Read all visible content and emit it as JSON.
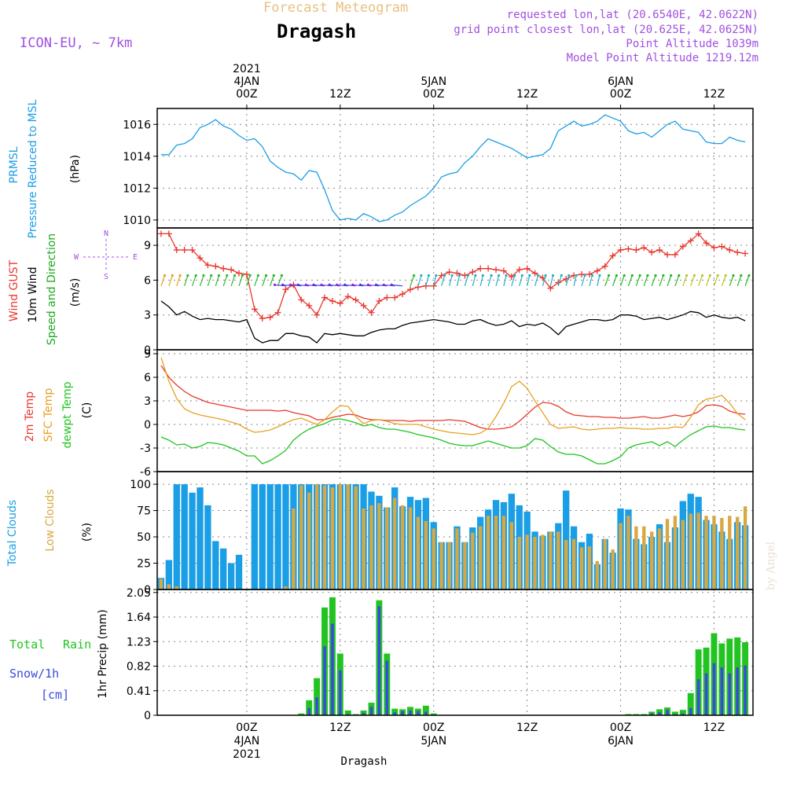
{
  "header": {
    "title_faint": "Forecast Meteogram",
    "location": "Dragash",
    "model": "ICON-EU, ~ 7km",
    "requested": "requested lon,lat (20.6540E, 42.0622N)",
    "gridpoint": "grid point closest lon,lat (20.625E, 42.0625N)",
    "point_alt": "Point Altitude 1039m",
    "model_alt": "Model Point Altitude 1219.12m",
    "footer_location": "Dragash",
    "watermark": "by Angel"
  },
  "time_axis": {
    "top_labels": [
      {
        "line1": "2021",
        "line2": "4JAN",
        "line3": "00Z",
        "hour": 0
      },
      {
        "line1": "",
        "line2": "",
        "line3": "12Z",
        "hour": 12
      },
      {
        "line1": "",
        "line2": "5JAN",
        "line3": "00Z",
        "hour": 24
      },
      {
        "line1": "",
        "line2": "",
        "line3": "12Z",
        "hour": 36
      },
      {
        "line1": "",
        "line2": "6JAN",
        "line3": "00Z",
        "hour": 48
      },
      {
        "line1": "",
        "line2": "",
        "line3": "12Z",
        "hour": 60
      }
    ],
    "bottom_labels": [
      {
        "line1": "00Z",
        "line2": "4JAN",
        "line3": "2021",
        "hour": 0
      },
      {
        "line1": "12Z",
        "line2": "",
        "line3": "",
        "hour": 12
      },
      {
        "line1": "00Z",
        "line2": "5JAN",
        "line3": "",
        "hour": 24
      },
      {
        "line1": "12Z",
        "line2": "",
        "line3": "",
        "hour": 36
      },
      {
        "line1": "00Z",
        "line2": "6JAN",
        "line3": "",
        "hour": 48
      },
      {
        "line1": "12Z",
        "line2": "",
        "line3": "",
        "hour": 60
      }
    ],
    "xlim": [
      -11.5,
      65
    ]
  },
  "colors": {
    "pressure": "#1a9ee6",
    "gust": "#e8372e",
    "wind": "#000000",
    "windlabel": "#1aaa1a",
    "temp2m": "#e8372e",
    "sfc": "#e8a020",
    "dewpt": "#1ec41e",
    "total_cloud": "#1a9ee6",
    "low_cloud": "#d8a840",
    "rain": "#22c422",
    "snow": "#3a4ae0",
    "purple": "#a050e0",
    "faint": "#e8c080"
  },
  "panels": {
    "pressure": {
      "l1": "PRMSL",
      "l2": "Pressure Reduced to MSL",
      "unit": "(hPa)",
      "ticks": [
        "1010",
        "1012",
        "1014",
        "1016"
      ]
    },
    "wind": {
      "l1": "Wind GUST",
      "l2": "10m Wind",
      "l3": "Speed and Direction",
      "unit": "(m/s)",
      "ticks": [
        "0",
        "3",
        "6",
        "9"
      ],
      "compass": {
        "n": "N",
        "s": "S",
        "e": "E",
        "w": "W"
      }
    },
    "temp": {
      "l1": "2m Temp",
      "l2": "SFC Temp",
      "l3": "dewpt Temp",
      "unit": "(C)",
      "ticks": [
        "-6",
        "-3",
        "0",
        "3",
        "6",
        "9"
      ]
    },
    "clouds": {
      "l1": "Total Clouds",
      "l2": "Low Clouds",
      "unit": "(%)",
      "ticks": [
        "0",
        "25",
        "50",
        "75",
        "100"
      ]
    },
    "precip": {
      "l1": "Total",
      "l1b": "Rain",
      "l2": "Snow/1h",
      "l3": "[cm]",
      "unit": "1hr Precip (mm)",
      "ticks": [
        "0",
        "0.41",
        "0.82",
        "1.23",
        "1.64",
        "2.05"
      ]
    }
  },
  "chart_data": [
    {
      "type": "line",
      "name": "pressure",
      "ylim": [
        1009.5,
        1017
      ],
      "ylabel": "(hPa)",
      "x": [
        -11,
        -10,
        -9,
        -8,
        -7,
        -6,
        -5,
        -4,
        -3,
        -2,
        -1,
        0,
        1,
        2,
        3,
        4,
        5,
        6,
        7,
        8,
        9,
        10,
        11,
        12,
        13,
        14,
        15,
        16,
        17,
        18,
        19,
        20,
        21,
        22,
        23,
        24,
        25,
        26,
        27,
        28,
        29,
        30,
        31,
        32,
        33,
        34,
        35,
        36,
        37,
        38,
        39,
        40,
        41,
        42,
        43,
        44,
        45,
        46,
        47,
        48,
        49,
        50,
        51,
        52,
        53,
        54,
        55,
        56,
        57,
        58,
        59,
        60,
        61,
        62,
        63,
        64
      ],
      "values": [
        1014.1,
        1014.1,
        1014.7,
        1014.8,
        1015.1,
        1015.8,
        1016.0,
        1016.3,
        1015.9,
        1015.7,
        1015.3,
        1015.0,
        1015.1,
        1014.6,
        1013.7,
        1013.3,
        1013.0,
        1012.9,
        1012.5,
        1013.1,
        1013.0,
        1011.9,
        1010.6,
        1010.0,
        1010.1,
        1010.0,
        1010.4,
        1010.2,
        1009.9,
        1010.0,
        1010.3,
        1010.5,
        1010.9,
        1011.2,
        1011.5,
        1012.0,
        1012.7,
        1012.9,
        1013.0,
        1013.6,
        1014.0,
        1014.6,
        1015.1,
        1014.9,
        1014.7,
        1014.5,
        1014.2,
        1013.9,
        1014.0,
        1014.1,
        1014.5,
        1015.6,
        1015.9,
        1016.2,
        1015.9,
        1016.0,
        1016.2,
        1016.6,
        1016.4,
        1016.2,
        1015.6,
        1015.4,
        1015.5,
        1015.2,
        1015.6,
        1016.0,
        1016.2,
        1015.7,
        1015.6,
        1015.5,
        1014.9,
        1014.8,
        1014.8,
        1015.2,
        1015.0,
        1014.9
      ]
    },
    {
      "type": "line",
      "name": "wind",
      "ylim": [
        0,
        10.5
      ],
      "ylabel": "(m/s)",
      "x": [
        -11,
        -10,
        -9,
        -8,
        -7,
        -6,
        -5,
        -4,
        -3,
        -2,
        -1,
        0,
        1,
        2,
        3,
        4,
        5,
        6,
        7,
        8,
        9,
        10,
        11,
        12,
        13,
        14,
        15,
        16,
        17,
        18,
        19,
        20,
        21,
        22,
        23,
        24,
        25,
        26,
        27,
        28,
        29,
        30,
        31,
        32,
        33,
        34,
        35,
        36,
        37,
        38,
        39,
        40,
        41,
        42,
        43,
        44,
        45,
        46,
        47,
        48,
        49,
        50,
        51,
        52,
        53,
        54,
        55,
        56,
        57,
        58,
        59,
        60,
        61,
        62,
        63,
        64
      ],
      "gust": [
        10.0,
        10.0,
        8.6,
        8.6,
        8.6,
        7.9,
        7.3,
        7.2,
        7.0,
        6.9,
        6.6,
        6.5,
        3.5,
        2.7,
        2.8,
        3.2,
        5.2,
        5.6,
        4.3,
        3.8,
        3.0,
        4.5,
        4.2,
        4.0,
        4.6,
        4.3,
        3.8,
        3.2,
        4.2,
        4.5,
        4.5,
        4.8,
        5.2,
        5.4,
        5.5,
        5.5,
        6.4,
        6.7,
        6.6,
        6.4,
        6.7,
        7.0,
        7.0,
        6.9,
        6.8,
        6.3,
        6.9,
        7.0,
        6.6,
        6.2,
        5.3,
        5.8,
        6.1,
        6.4,
        6.5,
        6.5,
        6.8,
        7.2,
        8.1,
        8.6,
        8.7,
        8.6,
        8.8,
        8.4,
        8.6,
        8.2,
        8.2,
        8.9,
        9.4,
        10.0,
        9.2,
        8.8,
        8.9,
        8.6,
        8.4,
        8.3
      ],
      "speed": [
        4.2,
        3.7,
        3.0,
        3.3,
        2.9,
        2.6,
        2.7,
        2.6,
        2.6,
        2.5,
        2.4,
        2.6,
        1.0,
        0.6,
        0.8,
        0.8,
        1.4,
        1.4,
        1.2,
        1.1,
        0.6,
        1.4,
        1.3,
        1.4,
        1.3,
        1.2,
        1.2,
        1.5,
        1.7,
        1.8,
        1.8,
        2.1,
        2.3,
        2.4,
        2.5,
        2.6,
        2.5,
        2.4,
        2.2,
        2.2,
        2.5,
        2.6,
        2.3,
        2.1,
        2.2,
        2.5,
        2.0,
        2.2,
        2.1,
        2.3,
        1.9,
        1.3,
        2.0,
        2.2,
        2.4,
        2.6,
        2.6,
        2.5,
        2.6,
        3.0,
        3.0,
        2.9,
        2.6,
        2.7,
        2.8,
        2.6,
        2.8,
        3.0,
        3.3,
        3.2,
        2.8,
        3.0,
        2.8,
        2.7,
        2.8,
        2.5
      ]
    },
    {
      "type": "line",
      "name": "temperature",
      "ylim": [
        -6,
        9.5
      ],
      "ylabel": "(C)",
      "x": [
        -11,
        -10,
        -9,
        -8,
        -7,
        -6,
        -5,
        -4,
        -3,
        -2,
        -1,
        0,
        1,
        2,
        3,
        4,
        5,
        6,
        7,
        8,
        9,
        10,
        11,
        12,
        13,
        14,
        15,
        16,
        17,
        18,
        19,
        20,
        21,
        22,
        23,
        24,
        25,
        26,
        27,
        28,
        29,
        30,
        31,
        32,
        33,
        34,
        35,
        36,
        37,
        38,
        39,
        40,
        41,
        42,
        43,
        44,
        45,
        46,
        47,
        48,
        49,
        50,
        51,
        52,
        53,
        54,
        55,
        56,
        57,
        58,
        59,
        60,
        61,
        62,
        63,
        64
      ],
      "t2m": [
        7.5,
        6.0,
        5.0,
        4.2,
        3.6,
        3.2,
        2.8,
        2.6,
        2.4,
        2.2,
        2.0,
        1.8,
        1.8,
        1.8,
        1.8,
        1.7,
        1.8,
        1.5,
        1.3,
        1.1,
        0.6,
        0.6,
        0.9,
        1.1,
        1.3,
        1.2,
        0.8,
        0.6,
        0.6,
        0.5,
        0.5,
        0.5,
        0.4,
        0.5,
        0.5,
        0.5,
        0.5,
        0.6,
        0.5,
        0.4,
        0.0,
        -0.4,
        -0.6,
        -0.6,
        -0.5,
        -0.3,
        0.4,
        1.3,
        2.2,
        2.8,
        2.7,
        2.3,
        1.6,
        1.2,
        1.1,
        1.0,
        1.0,
        0.9,
        0.9,
        0.8,
        0.8,
        0.9,
        1.0,
        0.8,
        0.8,
        1.0,
        1.2,
        1.0,
        1.2,
        1.6,
        2.4,
        2.5,
        2.3,
        1.7,
        1.4,
        1.3
      ],
      "sfc": [
        8.5,
        5.5,
        3.3,
        2.0,
        1.5,
        1.2,
        1.0,
        0.8,
        0.6,
        0.3,
        0.0,
        -0.6,
        -1.0,
        -0.9,
        -0.7,
        -0.3,
        0.2,
        0.6,
        0.8,
        0.4,
        0.0,
        0.6,
        1.6,
        2.4,
        2.3,
        1.0,
        0.1,
        0.5,
        0.6,
        0.4,
        0.1,
        0.0,
        0.0,
        0.0,
        -0.3,
        -0.6,
        -0.8,
        -1.0,
        -1.1,
        -1.2,
        -1.3,
        -1.1,
        -0.5,
        1.0,
        2.7,
        4.8,
        5.5,
        4.6,
        3.0,
        1.5,
        0.0,
        -0.5,
        -0.4,
        -0.3,
        -0.6,
        -0.7,
        -0.6,
        -0.5,
        -0.5,
        -0.4,
        -0.5,
        -0.5,
        -0.6,
        -0.6,
        -0.5,
        -0.5,
        -0.3,
        -0.4,
        0.9,
        2.5,
        3.2,
        3.4,
        3.7,
        2.7,
        1.4,
        0.6
      ],
      "dewpt": [
        -1.6,
        -2.0,
        -2.6,
        -2.5,
        -3.0,
        -2.8,
        -2.3,
        -2.4,
        -2.6,
        -3.0,
        -3.4,
        -4.0,
        -4.0,
        -5.0,
        -4.6,
        -4.0,
        -3.3,
        -2.0,
        -1.2,
        -0.6,
        -0.2,
        0.1,
        0.6,
        0.7,
        0.5,
        0.2,
        -0.2,
        0.0,
        -0.4,
        -0.6,
        -0.6,
        -0.8,
        -1.0,
        -1.3,
        -1.5,
        -1.7,
        -2.0,
        -2.4,
        -2.6,
        -2.7,
        -2.7,
        -2.4,
        -2.1,
        -2.4,
        -2.7,
        -3.0,
        -3.0,
        -2.7,
        -1.8,
        -2.0,
        -2.8,
        -3.5,
        -3.8,
        -3.8,
        -4.0,
        -4.5,
        -5.0,
        -5.0,
        -4.6,
        -4.1,
        -3.0,
        -2.6,
        -2.4,
        -2.2,
        -2.7,
        -2.2,
        -2.8,
        -2.0,
        -1.3,
        -0.8,
        -0.3,
        -0.2,
        -0.4,
        -0.4,
        -0.6,
        -0.7
      ]
    },
    {
      "type": "bar",
      "name": "clouds",
      "ylim": [
        0,
        100
      ],
      "ylabel": "(%)",
      "x": [
        -11,
        -10,
        -9,
        -8,
        -7,
        -6,
        -5,
        -4,
        -3,
        -2,
        -1,
        0,
        1,
        2,
        3,
        4,
        5,
        6,
        7,
        8,
        9,
        10,
        11,
        12,
        13,
        14,
        15,
        16,
        17,
        18,
        19,
        20,
        21,
        22,
        23,
        24,
        25,
        26,
        27,
        28,
        29,
        30,
        31,
        32,
        33,
        34,
        35,
        36,
        37,
        38,
        39,
        40,
        41,
        42,
        43,
        44,
        45,
        46,
        47,
        48,
        49,
        50,
        51,
        52,
        53,
        54,
        55,
        56,
        57,
        58,
        59,
        60,
        61,
        62,
        63,
        64
      ],
      "total": [
        11,
        28,
        100,
        100,
        92,
        97,
        80,
        46,
        39,
        25,
        33,
        0,
        100,
        100,
        100,
        100,
        100,
        100,
        100,
        100,
        100,
        100,
        100,
        100,
        100,
        100,
        100,
        93,
        89,
        78,
        97,
        79,
        88,
        85,
        87,
        64,
        45,
        45,
        60,
        45,
        59,
        69,
        76,
        85,
        83,
        91,
        80,
        74,
        55,
        51,
        55,
        63,
        94,
        60,
        45,
        53,
        24,
        48,
        35,
        77,
        76,
        48,
        43,
        50,
        62,
        45,
        59,
        84,
        91,
        88,
        66,
        62,
        55,
        48,
        64,
        61
      ],
      "low": [
        10,
        5,
        3,
        0,
        0,
        0,
        0,
        0,
        0,
        0,
        0,
        0,
        0,
        0,
        0,
        0,
        3,
        77,
        99,
        92,
        100,
        99,
        97,
        100,
        100,
        98,
        77,
        80,
        82,
        78,
        87,
        80,
        78,
        69,
        65,
        58,
        45,
        45,
        58,
        45,
        54,
        60,
        70,
        70,
        70,
        64,
        50,
        52,
        50,
        52,
        55,
        55,
        47,
        48,
        40,
        41,
        27,
        48,
        38,
        63,
        70,
        60,
        60,
        55,
        58,
        67,
        70,
        66,
        72,
        73,
        70,
        70,
        68,
        70,
        69,
        79
      ]
    },
    {
      "type": "bar",
      "name": "precipitation",
      "ylim": [
        0,
        2.05
      ],
      "ylabel": "1hr Precip (mm)",
      "x": [
        -11,
        -10,
        -9,
        -8,
        -7,
        -6,
        -5,
        -4,
        -3,
        -2,
        -1,
        0,
        1,
        2,
        3,
        4,
        5,
        6,
        7,
        8,
        9,
        10,
        11,
        12,
        13,
        14,
        15,
        16,
        17,
        18,
        19,
        20,
        21,
        22,
        23,
        24,
        25,
        26,
        27,
        28,
        29,
        30,
        31,
        32,
        33,
        34,
        35,
        36,
        37,
        38,
        39,
        40,
        41,
        42,
        43,
        44,
        45,
        46,
        47,
        48,
        49,
        50,
        51,
        52,
        53,
        54,
        55,
        56,
        57,
        58,
        59,
        60,
        61,
        62,
        63,
        64
      ],
      "rain": [
        0,
        0,
        0,
        0,
        0,
        0,
        0,
        0,
        0,
        0,
        0,
        0,
        0,
        0,
        0,
        0,
        0,
        0,
        0.03,
        0.25,
        0.62,
        1.8,
        1.97,
        1.03,
        0.08,
        0.02,
        0.08,
        0.21,
        1.92,
        1.03,
        0.11,
        0.1,
        0.14,
        0.11,
        0.16,
        0.03,
        0,
        0,
        0,
        0,
        0,
        0,
        0,
        0,
        0,
        0,
        0,
        0,
        0,
        0,
        0,
        0,
        0,
        0,
        0,
        0,
        0,
        0,
        0,
        0,
        0.02,
        0.02,
        0.02,
        0.06,
        0.1,
        0.13,
        0.06,
        0.09,
        0.37,
        1.1,
        1.13,
        1.37,
        1.2,
        1.28,
        1.3,
        1.22,
        1.2
      ],
      "snow": [
        0,
        0,
        0,
        0,
        0,
        0,
        0,
        0,
        0,
        0,
        0,
        0,
        0,
        0,
        0,
        0,
        0,
        0,
        0,
        0.12,
        0.3,
        1.15,
        1.53,
        0.75,
        0.02,
        0,
        0.04,
        0.14,
        1.82,
        0.91,
        0.05,
        0.07,
        0.08,
        0.07,
        0.06,
        0.01,
        0,
        0,
        0,
        0,
        0,
        0,
        0,
        0,
        0,
        0,
        0,
        0,
        0,
        0,
        0,
        0,
        0,
        0,
        0,
        0,
        0,
        0,
        0,
        0,
        0,
        0,
        0.01,
        0.03,
        0.05,
        0.09,
        0.02,
        0.03,
        0.12,
        0.6,
        0.7,
        0.87,
        0.8,
        0.7,
        0.8,
        0.83,
        0.81
      ]
    }
  ]
}
